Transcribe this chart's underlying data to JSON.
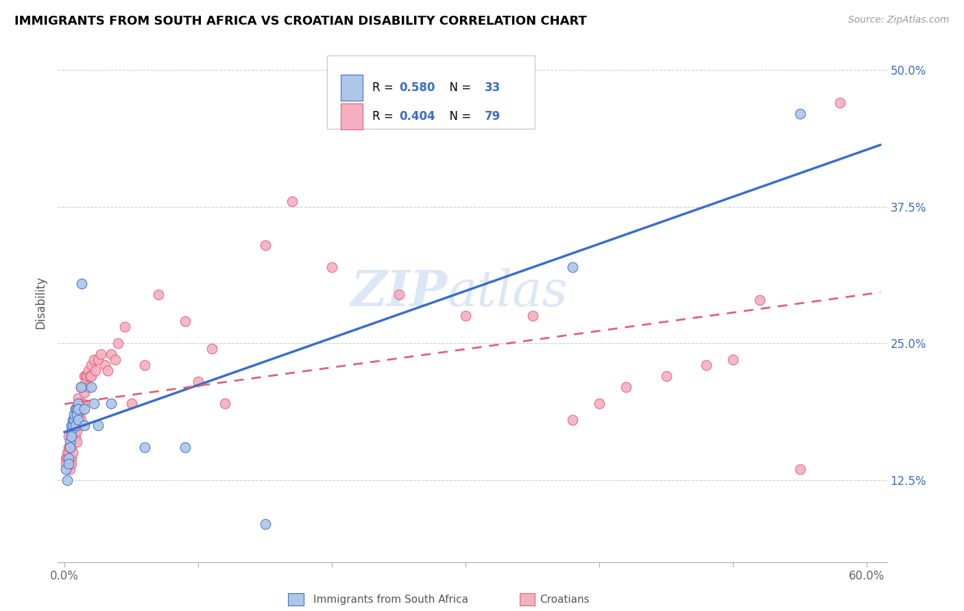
{
  "title": "IMMIGRANTS FROM SOUTH AFRICA VS CROATIAN DISABILITY CORRELATION CHART",
  "source": "Source: ZipAtlas.com",
  "ylabel": "Disability",
  "x_min": 0.0,
  "x_max": 0.6,
  "y_min": 0.05,
  "y_max": 0.525,
  "y_ticks": [
    0.125,
    0.25,
    0.375,
    0.5
  ],
  "y_tick_labels": [
    "12.5%",
    "25.0%",
    "37.5%",
    "50.0%"
  ],
  "blue_R": 0.58,
  "blue_N": 33,
  "pink_R": 0.404,
  "pink_N": 79,
  "blue_color": "#aec6e8",
  "pink_color": "#f4afc0",
  "blue_line_color": "#3b6dc7",
  "pink_line_color": "#e0607a",
  "watermark_zip": "ZIP",
  "watermark_atlas": "atlas",
  "blue_scatter_x": [
    0.001,
    0.002,
    0.003,
    0.003,
    0.004,
    0.004,
    0.005,
    0.005,
    0.005,
    0.006,
    0.006,
    0.007,
    0.007,
    0.008,
    0.008,
    0.009,
    0.009,
    0.01,
    0.01,
    0.01,
    0.012,
    0.013,
    0.015,
    0.015,
    0.02,
    0.022,
    0.025,
    0.035,
    0.06,
    0.09,
    0.15,
    0.38,
    0.55
  ],
  "blue_scatter_y": [
    0.135,
    0.125,
    0.145,
    0.14,
    0.16,
    0.155,
    0.175,
    0.17,
    0.165,
    0.18,
    0.175,
    0.18,
    0.185,
    0.19,
    0.175,
    0.19,
    0.185,
    0.195,
    0.19,
    0.18,
    0.21,
    0.305,
    0.19,
    0.175,
    0.21,
    0.195,
    0.175,
    0.195,
    0.155,
    0.155,
    0.085,
    0.32,
    0.46
  ],
  "pink_scatter_x": [
    0.001,
    0.001,
    0.002,
    0.002,
    0.003,
    0.003,
    0.003,
    0.004,
    0.004,
    0.004,
    0.005,
    0.005,
    0.005,
    0.005,
    0.006,
    0.006,
    0.006,
    0.007,
    0.007,
    0.008,
    0.008,
    0.008,
    0.009,
    0.009,
    0.009,
    0.01,
    0.01,
    0.01,
    0.011,
    0.011,
    0.012,
    0.012,
    0.012,
    0.013,
    0.013,
    0.014,
    0.014,
    0.015,
    0.015,
    0.016,
    0.016,
    0.017,
    0.018,
    0.018,
    0.019,
    0.02,
    0.02,
    0.022,
    0.023,
    0.025,
    0.027,
    0.03,
    0.032,
    0.035,
    0.038,
    0.04,
    0.045,
    0.05,
    0.06,
    0.07,
    0.09,
    0.1,
    0.11,
    0.12,
    0.15,
    0.17,
    0.2,
    0.25,
    0.3,
    0.35,
    0.38,
    0.4,
    0.42,
    0.45,
    0.48,
    0.5,
    0.52,
    0.55,
    0.58
  ],
  "pink_scatter_y": [
    0.145,
    0.14,
    0.15,
    0.145,
    0.165,
    0.155,
    0.15,
    0.155,
    0.14,
    0.135,
    0.165,
    0.155,
    0.145,
    0.14,
    0.175,
    0.165,
    0.15,
    0.18,
    0.165,
    0.19,
    0.175,
    0.165,
    0.185,
    0.17,
    0.16,
    0.2,
    0.185,
    0.175,
    0.195,
    0.185,
    0.21,
    0.19,
    0.18,
    0.21,
    0.195,
    0.21,
    0.195,
    0.22,
    0.205,
    0.22,
    0.215,
    0.22,
    0.225,
    0.21,
    0.22,
    0.23,
    0.22,
    0.235,
    0.225,
    0.235,
    0.24,
    0.23,
    0.225,
    0.24,
    0.235,
    0.25,
    0.265,
    0.195,
    0.23,
    0.295,
    0.27,
    0.215,
    0.245,
    0.195,
    0.34,
    0.38,
    0.32,
    0.295,
    0.275,
    0.275,
    0.18,
    0.195,
    0.21,
    0.22,
    0.23,
    0.235,
    0.29,
    0.135,
    0.47
  ]
}
